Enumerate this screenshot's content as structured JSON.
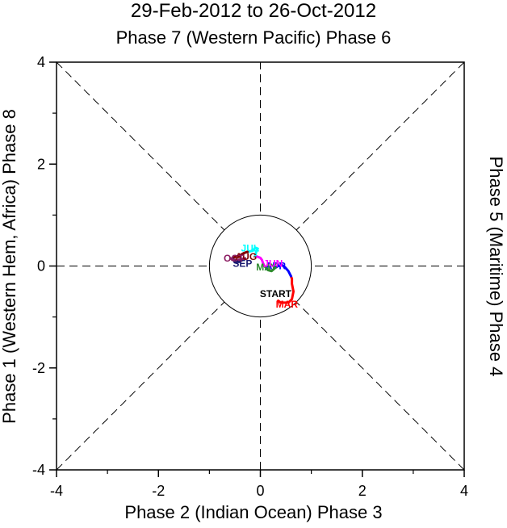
{
  "chart_data": {
    "type": "line",
    "title": "29-Feb-2012 to 26-Oct-2012",
    "top_label": "Phase 7 (Western Pacific) Phase 6",
    "bottom_label": "Phase 2 (Indian Ocean) Phase 3",
    "left_label": "Phase 1 (Western Hem, Africa) Phase 8",
    "right_label": "Phase 5 (Maritime) Phase 4",
    "xlim": [
      -4,
      4
    ],
    "ylim": [
      -4,
      4
    ],
    "x_ticks": [
      "-4",
      "-2",
      "0",
      "2",
      "4"
    ],
    "y_ticks": [
      "4",
      "2",
      "0",
      "-2",
      "-4"
    ],
    "circle_radius": 1,
    "start_label": "START",
    "start_point": [
      0.3,
      -0.55
    ],
    "series": [
      {
        "name": "MAR",
        "color": "#ff0000",
        "x": [
          0.35,
          0.4,
          0.55,
          0.62,
          0.65,
          0.62,
          0.62,
          0.6
        ],
        "y": [
          -0.68,
          -0.72,
          -0.72,
          -0.65,
          -0.5,
          -0.35,
          -0.25,
          -0.2
        ],
        "label_xy": [
          0.52,
          -0.75
        ]
      },
      {
        "name": "APR",
        "color": "#0000ff",
        "x": [
          0.6,
          0.55,
          0.48,
          0.42,
          0.35,
          0.3
        ],
        "y": [
          -0.2,
          -0.1,
          -0.02,
          0.02,
          0.0,
          -0.03
        ],
        "label_xy": [
          0.3,
          0.0
        ]
      },
      {
        "name": "MAY",
        "color": "#2e8b2e",
        "x": [
          0.3,
          0.22,
          0.15,
          0.08
        ],
        "y": [
          -0.03,
          -0.1,
          -0.08,
          0.0
        ],
        "label_xy": [
          0.12,
          -0.02
        ]
      },
      {
        "name": "JUN",
        "color": "#ff00ff",
        "x": [
          0.08,
          0.05,
          0.03,
          0.0,
          -0.05,
          -0.1
        ],
        "y": [
          0.0,
          0.06,
          0.12,
          0.16,
          0.18,
          0.2
        ],
        "label_xy": [
          0.25,
          0.05
        ]
      },
      {
        "name": "JUL",
        "color": "#00ffff",
        "x": [
          -0.1,
          -0.08,
          -0.05,
          -0.1,
          -0.15,
          -0.25
        ],
        "y": [
          0.2,
          0.28,
          0.34,
          0.36,
          0.3,
          0.28
        ],
        "label_xy": [
          -0.2,
          0.35
        ]
      },
      {
        "name": "AUG",
        "color": "#800000",
        "x": [
          -0.25,
          -0.33,
          -0.42,
          -0.52,
          -0.55
        ],
        "y": [
          0.28,
          0.25,
          0.2,
          0.17,
          0.15
        ],
        "label_xy": [
          -0.28,
          0.18
        ]
      },
      {
        "name": "SEP",
        "color": "#191970",
        "x": [
          -0.55,
          -0.5,
          -0.42,
          -0.35,
          -0.3
        ],
        "y": [
          0.15,
          0.08,
          0.08,
          0.12,
          0.15
        ],
        "label_xy": [
          -0.35,
          0.05
        ]
      },
      {
        "name": "OCT",
        "color": "#8b1c62",
        "x": [
          -0.3,
          -0.42,
          -0.55,
          -0.58
        ],
        "y": [
          0.15,
          0.12,
          0.12,
          0.15
        ],
        "label_xy": [
          -0.52,
          0.15
        ]
      }
    ]
  }
}
